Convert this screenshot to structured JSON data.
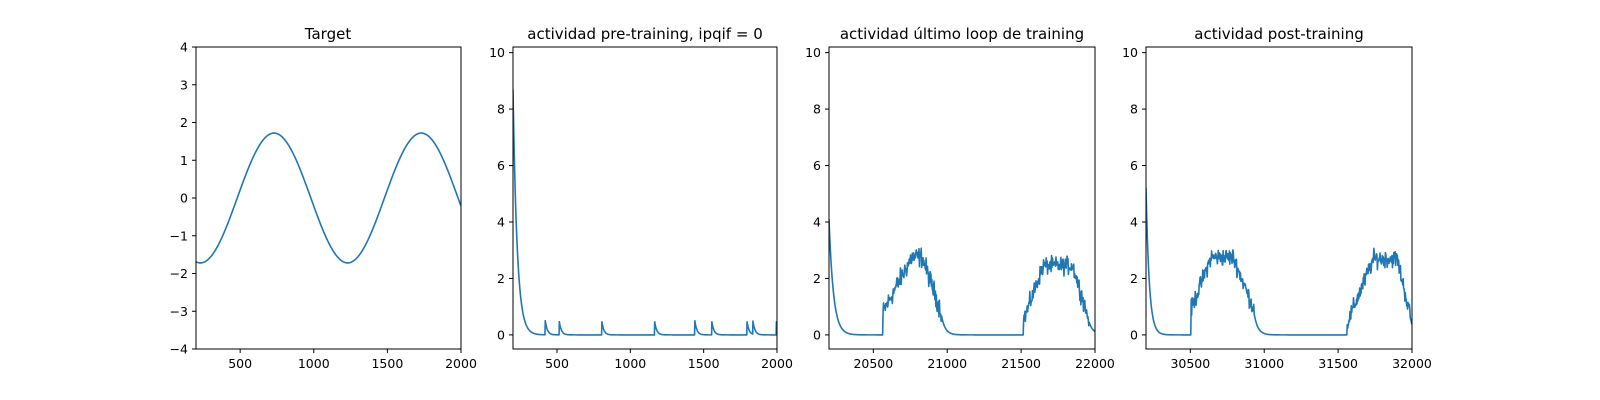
{
  "colors": {
    "line": "#1f77b4",
    "axes": "#000000",
    "background": "#ffffff"
  },
  "chart_data": [
    {
      "type": "line",
      "title": "Target",
      "xlabel": "",
      "ylabel": "",
      "xlim": [
        200,
        2000
      ],
      "ylim": [
        -4,
        4
      ],
      "xticks": [
        500,
        1000,
        1500,
        2000
      ],
      "yticks": [
        -4,
        -3,
        -2,
        -1,
        0,
        1,
        2,
        3,
        4
      ],
      "ytick_labels": [
        "−4",
        "−3",
        "−2",
        "−1",
        "0",
        "1",
        "2",
        "3",
        "4"
      ],
      "grid": false,
      "series": [
        {
          "kind": "sine",
          "amplitude": 1.72,
          "period": 1000,
          "peak_x": 730,
          "x_start": 200,
          "x_end": 2000
        }
      ]
    },
    {
      "type": "line",
      "title": "actividad pre-training, ipqif = 0",
      "xlabel": "",
      "ylabel": "",
      "xlim": [
        200,
        2000
      ],
      "ylim": [
        -0.5,
        10.2
      ],
      "xticks": [
        500,
        1000,
        1500,
        2000
      ],
      "yticks": [
        0,
        2,
        4,
        6,
        8,
        10
      ],
      "grid": false,
      "series": [
        {
          "kind": "decay_spikes",
          "x_start": 200,
          "x_end": 2000,
          "initial": {
            "x": 200,
            "peak": 8.7,
            "tau": 28
          },
          "early_bumps": [
            {
              "x": 205,
              "peak": 7.0
            },
            {
              "x": 218,
              "peak": 3.5
            }
          ],
          "spikes": [
            {
              "x": 420,
              "peak": 0.5
            },
            {
              "x": 515,
              "peak": 0.5
            },
            {
              "x": 805,
              "peak": 0.5
            },
            {
              "x": 1165,
              "peak": 0.5
            },
            {
              "x": 1440,
              "peak": 0.5
            },
            {
              "x": 1555,
              "peak": 0.5
            },
            {
              "x": 1795,
              "peak": 0.5
            },
            {
              "x": 1835,
              "peak": 0.5
            },
            {
              "x": 1995,
              "peak": 0.5
            }
          ],
          "spike_tau": 14
        }
      ]
    },
    {
      "type": "line",
      "title": "actividad último loop de training",
      "xlabel": "",
      "ylabel": "",
      "xlim": [
        20200,
        22000
      ],
      "ylim": [
        -0.5,
        10.2
      ],
      "xticks": [
        20500,
        21000,
        21500,
        22000
      ],
      "yticks": [
        0,
        2,
        4,
        6,
        8,
        10
      ],
      "grid": false,
      "series": [
        {
          "kind": "activity",
          "x_start": 20200,
          "x_end": 22000,
          "initial": {
            "x": 20200,
            "peak": 4.1,
            "tau": 30
          },
          "bumps": [
            {
              "start": 20565,
              "peak_start": 20760,
              "peak_end": 20830,
              "end": 20960,
              "base": 0.8,
              "peak": 2.75,
              "noise": 0.35,
              "tail_tau": 25
            },
            {
              "start": 21515,
              "peak_start": 21650,
              "peak_end": 21850,
              "end": 21960,
              "base": 0.5,
              "peak": 2.45,
              "noise": 0.3,
              "tail_tau": 30
            }
          ]
        }
      ]
    },
    {
      "type": "line",
      "title": "actividad post-training",
      "xlabel": "",
      "ylabel": "",
      "xlim": [
        30200,
        32000
      ],
      "ylim": [
        -0.5,
        10.2
      ],
      "xticks": [
        30500,
        31000,
        31500,
        32000
      ],
      "yticks": [
        0,
        2,
        4,
        6,
        8,
        10
      ],
      "grid": false,
      "series": [
        {
          "kind": "activity",
          "x_start": 30200,
          "x_end": 32000,
          "initial": {
            "x": 30200,
            "peak": 5.2,
            "tau": 22
          },
          "bumps": [
            {
              "start": 30505,
              "peak_start": 30640,
              "peak_end": 30790,
              "end": 30930,
              "base": 0.9,
              "peak": 2.75,
              "noise": 0.3,
              "tail_tau": 25
            },
            {
              "start": 31560,
              "peak_start": 31740,
              "peak_end": 31900,
              "end": 32000,
              "base": 0.4,
              "peak": 2.7,
              "noise": 0.3,
              "tail_tau": 30
            }
          ]
        }
      ]
    }
  ]
}
